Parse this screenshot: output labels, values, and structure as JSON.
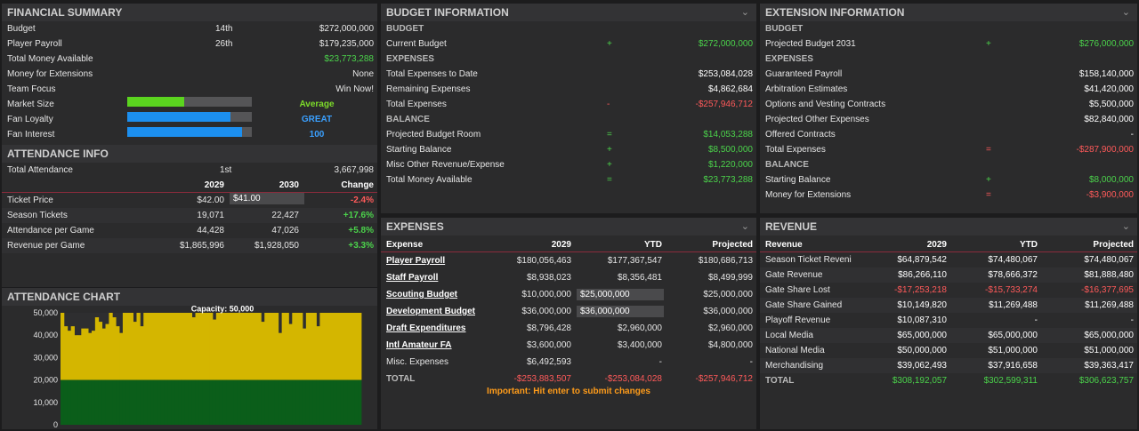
{
  "financial_summary": {
    "title": "FINANCIAL SUMMARY",
    "rows": [
      {
        "label": "Budget",
        "rank": "14th",
        "value": "$272,000,000"
      },
      {
        "label": "Player Payroll",
        "rank": "26th",
        "value": "$179,235,000"
      },
      {
        "label": "Total Money Available",
        "rank": "",
        "value": "$23,773,288"
      },
      {
        "label": "Money for Extensions",
        "rank": "",
        "value": "None"
      },
      {
        "label": "Team Focus",
        "rank": "",
        "value": "Win Now!"
      }
    ],
    "meters": [
      {
        "label": "Market Size",
        "value": "Average",
        "level": 0.46,
        "color": "#5bd41f",
        "text_color": "#7ddc2a"
      },
      {
        "label": "Fan Loyalty",
        "value": "GREAT",
        "level": 0.83,
        "color": "#1c8fef",
        "text_color": "#3aa0ff"
      },
      {
        "label": "Fan Interest",
        "value": "100",
        "level": 0.92,
        "color": "#1c8fef",
        "text_color": "#3aa0ff"
      }
    ]
  },
  "attendance_info": {
    "title": "ATTENDANCE INFO",
    "total_label": "Total Attendance",
    "total_rank": "1st",
    "total_value": "3,667,998",
    "headers": [
      "",
      "2029",
      "2030",
      "Change"
    ],
    "rows": [
      {
        "label": "Ticket Price",
        "y2029": "$42.00",
        "y2030": "$41.00",
        "change": "-2.4%",
        "neg": true,
        "input": true
      },
      {
        "label": "Season Tickets",
        "y2029": "19,071",
        "y2030": "22,427",
        "change": "+17.6%",
        "neg": false,
        "input": false
      },
      {
        "label": "Attendance per Game",
        "y2029": "44,428",
        "y2030": "47,026",
        "change": "+5.8%",
        "neg": false,
        "input": false
      },
      {
        "label": "Revenue per Game",
        "y2029": "$1,865,996",
        "y2030": "$1,928,050",
        "change": "+3.3%",
        "neg": false,
        "input": false
      }
    ]
  },
  "attendance_chart": {
    "title": "ATTENDANCE CHART",
    "capacity_label": "Capacity: 50,000"
  },
  "chart_data": {
    "type": "bar",
    "title": "",
    "annotation": "Capacity: 50,000",
    "yticks": [
      "50,000",
      "40,000",
      "30,000",
      "20,000",
      "10,000",
      "0"
    ],
    "ylim": [
      0,
      50000
    ],
    "threshold": 20000,
    "colors": {
      "above": "#d4b600",
      "below": "#0b5e1a"
    },
    "values": [
      50000,
      44000,
      42000,
      44000,
      40000,
      40000,
      43000,
      43000,
      41000,
      42000,
      48000,
      46000,
      43000,
      45000,
      50000,
      48000,
      44000,
      41000,
      50000,
      50000,
      50000,
      46000,
      50000,
      44000,
      50000,
      50000,
      50000,
      50000,
      50000,
      50000,
      50000,
      50000,
      50000,
      50000,
      50000,
      50000,
      50000,
      50000,
      48000,
      50000,
      50000,
      50000,
      50000,
      50000,
      47000,
      50000,
      50000,
      50000,
      50000,
      50000,
      50000,
      50000,
      50000,
      50000,
      50000,
      50000,
      50000,
      50000,
      46000,
      50000,
      50000,
      50000,
      50000,
      41000,
      50000,
      50000,
      45000,
      50000,
      50000,
      50000,
      43000,
      50000,
      50000,
      50000,
      44000,
      50000,
      50000,
      50000,
      50000,
      50000,
      50000,
      50000,
      50000,
      50000,
      50000,
      50000,
      50000
    ]
  },
  "budget_info": {
    "title": "BUDGET INFORMATION",
    "lines": [
      {
        "t": "sec",
        "label": "BUDGET"
      },
      {
        "t": "row",
        "label": "Current Budget",
        "op": "+",
        "value": "$272,000,000",
        "cls": "g"
      },
      {
        "t": "sec",
        "label": "EXPENSES"
      },
      {
        "t": "row",
        "label": "Total Expenses to Date",
        "op": "",
        "value": "$253,084,028",
        "cls": "w"
      },
      {
        "t": "row",
        "label": "Remaining Expenses",
        "op": "",
        "value": "$4,862,684",
        "cls": "w"
      },
      {
        "t": "row",
        "label": "Total Expenses",
        "op": "-",
        "value": "-$257,946,712",
        "cls": "r"
      },
      {
        "t": "sec",
        "label": "BALANCE"
      },
      {
        "t": "row",
        "label": "Projected Budget Room",
        "op": "=",
        "value": "$14,053,288",
        "cls": "g"
      },
      {
        "t": "row",
        "label": "Starting Balance",
        "op": "+",
        "value": "$8,500,000",
        "cls": "g"
      },
      {
        "t": "row",
        "label": "Misc Other Revenue/Expense",
        "op": "+",
        "value": "$1,220,000",
        "cls": "g"
      },
      {
        "t": "row",
        "label": "Total Money Available",
        "op": "=",
        "value": "$23,773,288",
        "cls": "g"
      }
    ]
  },
  "extension_info": {
    "title": "EXTENSION INFORMATION",
    "lines": [
      {
        "t": "sec",
        "label": "BUDGET"
      },
      {
        "t": "row",
        "label": "Projected Budget 2031",
        "op": "+",
        "value": "$276,000,000",
        "cls": "g"
      },
      {
        "t": "sec",
        "label": "EXPENSES"
      },
      {
        "t": "row",
        "label": "Guaranteed Payroll",
        "op": "",
        "value": "$158,140,000",
        "cls": "w"
      },
      {
        "t": "row",
        "label": "Arbitration Estimates",
        "op": "",
        "value": "$41,420,000",
        "cls": "w"
      },
      {
        "t": "row",
        "label": "Options and Vesting Contracts",
        "op": "",
        "value": "$5,500,000",
        "cls": "w"
      },
      {
        "t": "row",
        "label": "Projected Other Expenses",
        "op": "",
        "value": "$82,840,000",
        "cls": "w"
      },
      {
        "t": "row",
        "label": "Offered Contracts",
        "op": "",
        "value": "-",
        "cls": "w"
      },
      {
        "t": "row",
        "label": "Total Expenses",
        "op": "=",
        "value": "-$287,900,000",
        "cls": "r"
      },
      {
        "t": "sec",
        "label": "BALANCE"
      },
      {
        "t": "row",
        "label": "Starting Balance",
        "op": "+",
        "value": "$8,000,000",
        "cls": "g"
      },
      {
        "t": "row",
        "label": "Money for Extensions",
        "op": "=",
        "value": "-$3,900,000",
        "cls": "r"
      }
    ]
  },
  "expenses": {
    "title": "EXPENSES",
    "headers": [
      "Expense",
      "2029",
      "YTD",
      "Projected"
    ],
    "rows": [
      {
        "label": "Player Payroll",
        "link": true,
        "a": "$180,056,463",
        "b": "$177,367,547",
        "c": "$180,686,713",
        "input": false,
        "neg": false
      },
      {
        "label": "Staff Payroll",
        "link": true,
        "a": "$8,938,023",
        "b": "$8,356,481",
        "c": "$8,499,999",
        "input": false,
        "neg": false
      },
      {
        "label": "Scouting Budget",
        "link": true,
        "a": "$10,000,000",
        "b": "$25,000,000",
        "c": "$25,000,000",
        "input": true,
        "neg": false
      },
      {
        "label": "Development Budget",
        "link": true,
        "a": "$36,000,000",
        "b": "$36,000,000",
        "c": "$36,000,000",
        "input": true,
        "neg": false
      },
      {
        "label": "Draft Expenditures",
        "link": true,
        "a": "$8,796,428",
        "b": "$2,960,000",
        "c": "$2,960,000",
        "input": false,
        "neg": false
      },
      {
        "label": "Intl Amateur FA",
        "link": true,
        "a": "$3,600,000",
        "b": "$3,400,000",
        "c": "$4,800,000",
        "input": false,
        "neg": false
      },
      {
        "label": "Misc. Expenses",
        "link": false,
        "a": "$6,492,593",
        "b": "-",
        "c": "-",
        "input": false,
        "neg": false
      },
      {
        "label": "TOTAL",
        "link": false,
        "a": "-$253,883,507",
        "b": "-$253,084,028",
        "c": "-$257,946,712",
        "input": false,
        "neg": true
      }
    ],
    "note": "Important: Hit enter to submit changes"
  },
  "revenue": {
    "title": "REVENUE",
    "headers": [
      "Revenue",
      "2029",
      "YTD",
      "Projected"
    ],
    "rows": [
      {
        "label": "Season Ticket Reveni",
        "a": "$64,879,542",
        "b": "$74,480,067",
        "c": "$74,480,067",
        "cls": "w"
      },
      {
        "label": "Gate Revenue",
        "a": "$86,266,110",
        "b": "$78,666,372",
        "c": "$81,888,480",
        "cls": "w"
      },
      {
        "label": "Gate Share Lost",
        "a": "-$17,253,218",
        "b": "-$15,733,274",
        "c": "-$16,377,695",
        "cls": "r"
      },
      {
        "label": "Gate Share Gained",
        "a": "$10,149,820",
        "b": "$11,269,488",
        "c": "$11,269,488",
        "cls": "w"
      },
      {
        "label": "Playoff Revenue",
        "a": "$10,087,310",
        "b": "-",
        "c": "-",
        "cls": "w"
      },
      {
        "label": "Local Media",
        "a": "$65,000,000",
        "b": "$65,000,000",
        "c": "$65,000,000",
        "cls": "w"
      },
      {
        "label": "National Media",
        "a": "$50,000,000",
        "b": "$51,000,000",
        "c": "$51,000,000",
        "cls": "w"
      },
      {
        "label": "Merchandising",
        "a": "$39,062,493",
        "b": "$37,916,658",
        "c": "$39,363,417",
        "cls": "w"
      },
      {
        "label": "TOTAL",
        "a": "$308,192,057",
        "b": "$302,599,311",
        "c": "$306,623,757",
        "cls": "g"
      }
    ]
  }
}
